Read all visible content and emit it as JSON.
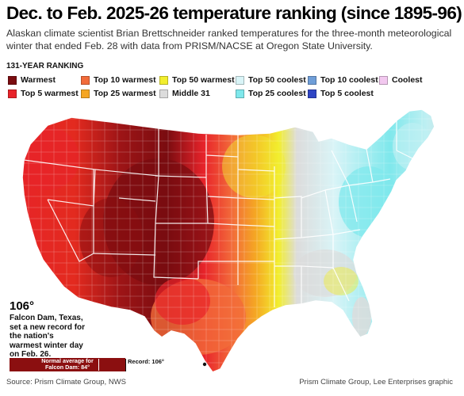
{
  "title": "Dec. to Feb. 2025-26 temperature ranking (since 1895-96)",
  "subtitle": "Alaskan climate scientist Brian Brettschneider ranked temperatures for the three-month meteorological winter that ended Feb. 28 with data from PRISM/NACSE at Oregon State University.",
  "ranking_label": "131-YEAR RANKING",
  "legend": [
    {
      "label": "Warmest",
      "color": "#7a0c10"
    },
    {
      "label": "Top 5 warmest",
      "color": "#e8232a"
    },
    {
      "label": "Top 10 warmest",
      "color": "#f26b3a"
    },
    {
      "label": "Top 25 warmest",
      "color": "#f5a623"
    },
    {
      "label": "Top 50 warmest",
      "color": "#f2ee2e"
    },
    {
      "label": "Middle 31",
      "color": "#dcdcdc"
    },
    {
      "label": "Top 50 coolest",
      "color": "#d9f4f7"
    },
    {
      "label": "Top 25 coolest",
      "color": "#7fe8ec"
    },
    {
      "label": "Top 10 coolest",
      "color": "#6f9ed8"
    },
    {
      "label": "Top 5 coolest",
      "color": "#2f45c4"
    },
    {
      "label": "Coolest",
      "color": "#f2c8ef"
    }
  ],
  "annotation": {
    "value": "106°",
    "text": "Falcon Dam, Texas, set a new record for the nation's warmest winter day on Feb. 26.",
    "normal_label": "Normal average for Falcon Dam: 84°",
    "record_label": "Record: 106°",
    "normal_value": 84,
    "record_value": 106
  },
  "source_left": "Source: Prism Climate Group, NWS",
  "source_right": "Prism Climate Group, Lee Enterprises graphic",
  "map": {
    "region": "Contiguous United States",
    "highlight_location": "Falcon Dam, Texas"
  }
}
